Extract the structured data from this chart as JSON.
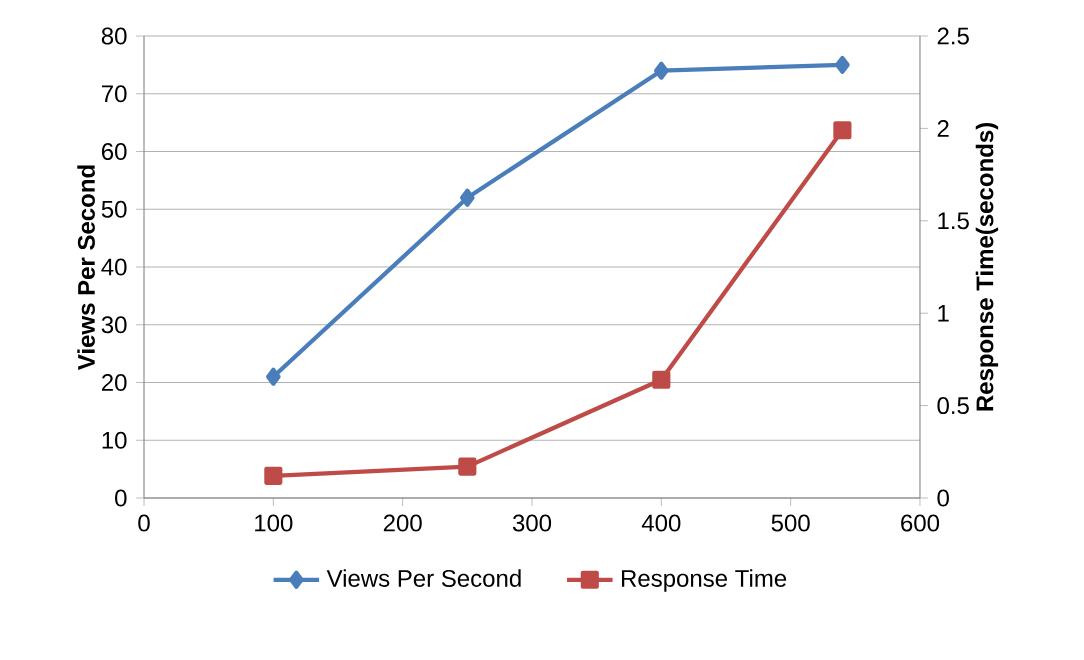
{
  "chart_data": {
    "type": "line",
    "x": [
      100,
      250,
      400,
      540
    ],
    "xlim": [
      0,
      600
    ],
    "xticks": [
      0,
      100,
      200,
      300,
      400,
      500,
      600
    ],
    "ylabel": "Views Per Second",
    "y2label": "Response Time(seconds)",
    "ylim": [
      0,
      80
    ],
    "yticks": [
      0,
      10,
      20,
      30,
      40,
      50,
      60,
      70,
      80
    ],
    "y2lim": [
      0,
      2.5
    ],
    "y2ticks": [
      0,
      0.5,
      1,
      1.5,
      2,
      2.5
    ],
    "grid": "y",
    "legend": "bottom",
    "line_style": "solid",
    "series": [
      {
        "name": "Views Per Second",
        "color": "#4a7ebb",
        "marker": "diamond",
        "values": [
          21,
          52,
          74,
          75
        ]
      },
      {
        "name": "Response Time",
        "color": "#be4b48",
        "marker": "square",
        "axis": "y2",
        "values": [
          0.12,
          0.17,
          0.64,
          1.99
        ]
      }
    ]
  }
}
